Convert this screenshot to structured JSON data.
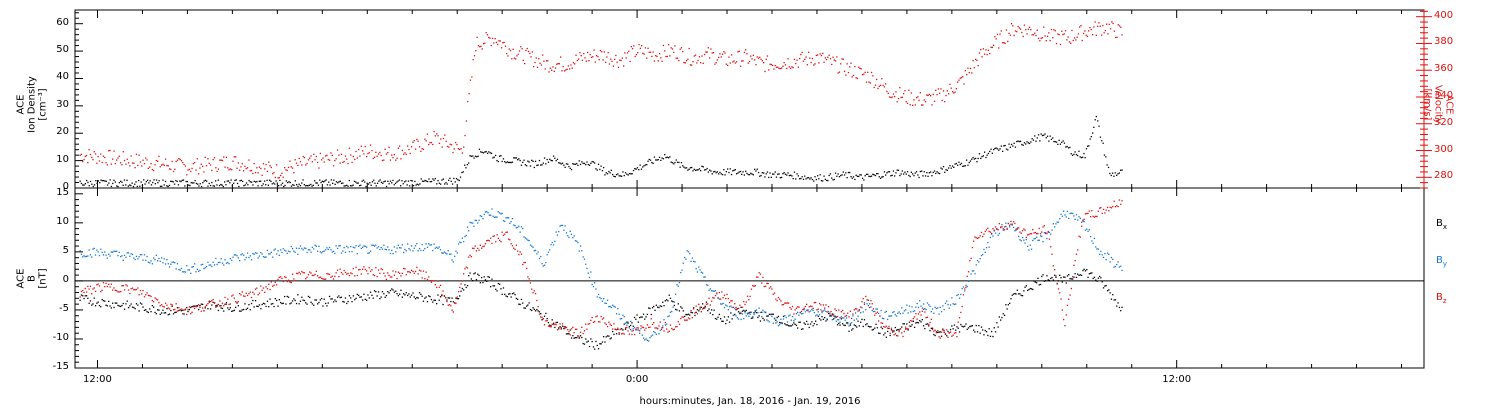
{
  "xaxis": {
    "title": "hours:minutes, Jan. 18, 2016 - Jan. 19, 2016",
    "ticks": [
      {
        "t": 12,
        "label": "12:00"
      },
      {
        "t": 24,
        "label": "0:00"
      },
      {
        "t": 36,
        "label": "12:00"
      }
    ]
  },
  "colors": {
    "black": "#000000",
    "red": "#e01010",
    "blue": "#1478d4"
  },
  "chart_data": [
    {
      "type": "scatter",
      "panel": "top",
      "left_axis": {
        "label_lines": [
          "ACE",
          "Ion Density",
          "[cm⁻³]"
        ],
        "ylim": [
          0,
          65
        ],
        "ticks": [
          0,
          10,
          20,
          30,
          40,
          50,
          60
        ]
      },
      "right_axis": {
        "label_lines": [
          "ACE",
          "Velocity",
          "[km/s]"
        ],
        "ylim": [
          272,
          405
        ],
        "ticks": [
          280,
          300,
          320,
          340,
          360,
          380,
          400
        ]
      },
      "xlim": [
        11.5,
        41.5
      ],
      "series": [
        {
          "color": "black",
          "axis": "left",
          "x": [
            11.6,
            12.5,
            13.5,
            14.5,
            15.5,
            16.5,
            17.5,
            18.5,
            19.5,
            20.0,
            20.3,
            20.6,
            20.9,
            21.3,
            21.7,
            22.1,
            22.5,
            22.9,
            23.3,
            23.7,
            24.2,
            24.6,
            25.0,
            25.4,
            25.8,
            26.2,
            26.6,
            27.0,
            27.4,
            27.8,
            28.2,
            28.6,
            29.0,
            29.4,
            29.8,
            30.2,
            30.6,
            31.0,
            31.4,
            31.8,
            32.2,
            32.6,
            33.0,
            33.4,
            33.7,
            33.95,
            34.2,
            34.5,
            34.8
          ],
          "y": [
            2,
            2,
            2,
            2,
            2,
            2,
            2,
            2,
            2.5,
            3,
            12,
            14,
            11,
            10,
            9,
            11,
            8,
            10,
            6,
            5,
            9,
            12,
            8,
            7,
            6,
            6,
            6,
            5,
            5,
            4,
            4,
            5,
            4,
            5,
            6,
            5,
            6,
            8,
            10,
            13,
            15,
            17,
            19,
            17,
            13,
            12,
            26,
            5,
            6
          ]
        },
        {
          "color": "red",
          "axis": "right",
          "x": [
            11.6,
            12.0,
            12.5,
            13.0,
            13.5,
            14.0,
            14.5,
            15.0,
            15.5,
            16.0,
            16.5,
            17.0,
            17.5,
            18.0,
            18.5,
            19.0,
            19.5,
            19.8,
            20.1,
            20.4,
            20.8,
            21.2,
            21.6,
            22.0,
            22.4,
            22.8,
            23.2,
            23.6,
            24.0,
            24.4,
            24.8,
            25.2,
            25.6,
            26.0,
            26.4,
            26.8,
            27.2,
            27.6,
            28.0,
            28.4,
            28.8,
            29.2,
            29.6,
            30.0,
            30.4,
            30.8,
            31.2,
            31.6,
            32.0,
            32.4,
            32.8,
            33.2,
            33.6,
            34.0,
            34.4,
            34.8
          ],
          "y": [
            297,
            296,
            294,
            292,
            290,
            288,
            290,
            292,
            289,
            285,
            290,
            293,
            296,
            300,
            298,
            302,
            310,
            305,
            300,
            380,
            385,
            375,
            370,
            365,
            365,
            370,
            372,
            368,
            375,
            372,
            375,
            370,
            372,
            368,
            370,
            365,
            366,
            368,
            370,
            365,
            360,
            355,
            345,
            340,
            338,
            342,
            352,
            370,
            382,
            392,
            390,
            385,
            385,
            390,
            393,
            388
          ]
        }
      ]
    },
    {
      "type": "scatter",
      "panel": "bottom",
      "left_axis": {
        "label_lines": [
          "ACE",
          "B",
          "[nT]"
        ],
        "ylim": [
          -15,
          16
        ],
        "ticks": [
          -15,
          -10,
          -5,
          0,
          5,
          10,
          15
        ]
      },
      "xlim": [
        11.5,
        41.5
      ],
      "zero_line": true,
      "series": [
        {
          "name": "B<sub>x</sub>",
          "color": "black",
          "x": [
            11.6,
            12.0,
            12.5,
            13.0,
            13.5,
            14.0,
            14.5,
            15.0,
            15.5,
            16.0,
            16.5,
            17.0,
            17.5,
            18.0,
            18.5,
            19.0,
            19.5,
            19.9,
            20.3,
            20.7,
            21.1,
            21.5,
            21.9,
            22.3,
            22.7,
            23.1,
            23.5,
            23.9,
            24.3,
            24.7,
            25.1,
            25.5,
            25.9,
            26.3,
            26.7,
            27.1,
            27.5,
            27.9,
            28.3,
            28.7,
            29.1,
            29.5,
            29.9,
            30.3,
            30.7,
            31.1,
            31.5,
            31.9,
            32.3,
            32.7,
            33.1,
            33.5,
            33.9,
            34.3,
            34.8
          ],
          "y": [
            -3,
            -3.5,
            -4,
            -4.5,
            -5,
            -5,
            -4,
            -4.5,
            -4,
            -3.5,
            -3,
            -3.5,
            -3,
            -2.5,
            -2,
            -2.5,
            -3,
            -3.5,
            1,
            0,
            -2,
            -4,
            -6,
            -8,
            -10,
            -11,
            -9,
            -7,
            -5,
            -3,
            -6,
            -4,
            -7,
            -5,
            -6,
            -6,
            -8,
            -7,
            -6,
            -8,
            -7,
            -9,
            -8,
            -7,
            -9,
            -8,
            -8,
            -9,
            -3,
            -1,
            1,
            0,
            2,
            0,
            -5
          ]
        },
        {
          "name": "B<sub>y</sub>",
          "color": "blue",
          "x": [
            11.6,
            12.0,
            12.5,
            13.0,
            13.5,
            14.0,
            14.5,
            15.0,
            15.5,
            16.0,
            16.5,
            17.0,
            17.5,
            18.0,
            18.5,
            19.0,
            19.5,
            19.9,
            20.3,
            20.7,
            21.1,
            21.5,
            21.9,
            22.3,
            22.7,
            23.1,
            23.5,
            23.9,
            24.3,
            24.7,
            25.1,
            25.5,
            25.9,
            26.3,
            26.7,
            27.1,
            27.5,
            27.9,
            28.3,
            28.7,
            29.1,
            29.5,
            29.9,
            30.3,
            30.7,
            31.1,
            31.5,
            31.9,
            32.3,
            32.7,
            33.1,
            33.5,
            33.9,
            34.3,
            34.8
          ],
          "y": [
            5,
            5,
            4.5,
            4,
            3.5,
            2,
            3,
            4,
            4.5,
            5,
            5.5,
            5.5,
            5.5,
            5.5,
            5.5,
            6,
            6,
            4,
            10,
            12,
            11,
            8,
            3,
            10,
            6,
            -2,
            -5,
            -8,
            -10,
            -6,
            5,
            0,
            -4,
            -6,
            -5,
            -7,
            -6,
            -5,
            -6,
            -7,
            -4,
            -6,
            -5,
            -4,
            -5,
            -3,
            2,
            8,
            10,
            6,
            8,
            12,
            10,
            5,
            2
          ]
        },
        {
          "name": "B<sub>z</sub>",
          "color": "red",
          "x": [
            11.6,
            12.0,
            12.5,
            13.0,
            13.5,
            14.0,
            14.5,
            15.0,
            15.5,
            16.0,
            16.5,
            17.0,
            17.5,
            18.0,
            18.5,
            19.0,
            19.5,
            19.9,
            20.3,
            20.7,
            21.1,
            21.5,
            21.9,
            22.3,
            22.7,
            23.1,
            23.5,
            23.9,
            24.3,
            24.7,
            25.1,
            25.5,
            25.9,
            26.3,
            26.7,
            27.1,
            27.5,
            27.9,
            28.3,
            28.7,
            29.1,
            29.5,
            29.9,
            30.3,
            30.7,
            31.1,
            31.5,
            31.9,
            32.3,
            32.7,
            33.1,
            33.5,
            33.9,
            34.3,
            34.8
          ],
          "y": [
            -2,
            -1,
            -1,
            -2,
            -4,
            -5,
            -4,
            -3,
            -2,
            0,
            1,
            1,
            1.5,
            2,
            1,
            2,
            0,
            -5,
            5,
            7,
            8,
            3,
            -7,
            -8,
            -9,
            -6,
            -8,
            -9,
            -7,
            -8,
            -6,
            -4,
            -2,
            -5,
            1,
            -3,
            -5,
            -4,
            -5,
            -6,
            -3,
            -8,
            -9,
            -5,
            -9,
            -9,
            8,
            9,
            10,
            8,
            9,
            -7,
            11,
            12,
            14
          ]
        }
      ]
    }
  ]
}
